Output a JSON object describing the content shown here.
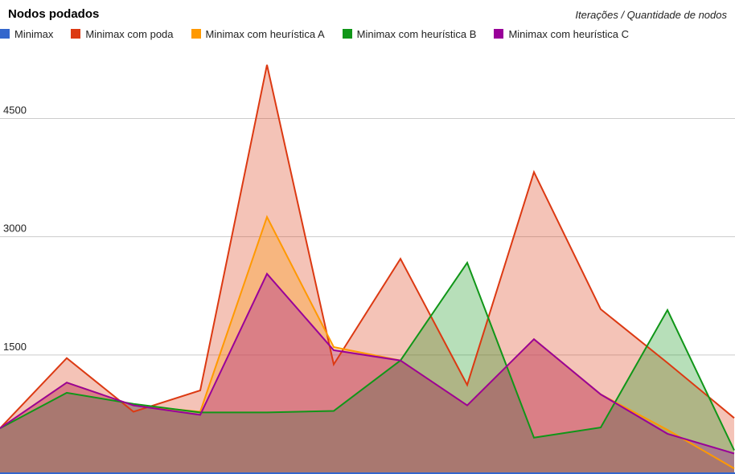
{
  "chart_data": {
    "type": "area",
    "title": "Nodos podados",
    "subtitle": "Iterações / Quantidade de nodos",
    "xlabel": "",
    "ylabel": "",
    "ylim": [
      0,
      5300
    ],
    "y_ticks": [
      1500,
      3000,
      4500
    ],
    "grid": true,
    "legend_position": "top",
    "x": [
      0,
      1,
      2,
      3,
      4,
      5,
      6,
      7,
      8,
      9,
      10,
      11
    ],
    "series": [
      {
        "name": "Minimax",
        "color": "#3366cc",
        "values": [
          0,
          0,
          0,
          0,
          0,
          0,
          0,
          0,
          0,
          0,
          0,
          0
        ]
      },
      {
        "name": "Minimax com poda",
        "color": "#dc3912",
        "values": [
          570,
          1460,
          780,
          1050,
          5180,
          1380,
          2720,
          1120,
          3820,
          2080,
          1400,
          700
        ]
      },
      {
        "name": "Minimax com heurística A",
        "color": "#ff9900",
        "values": [
          570,
          1150,
          860,
          780,
          3250,
          1600,
          1430,
          860,
          1700,
          1000,
          550,
          60
        ]
      },
      {
        "name": "Minimax com heurística B",
        "color": "#109618",
        "values": [
          570,
          1020,
          880,
          770,
          770,
          790,
          1430,
          2670,
          450,
          580,
          2070,
          290
        ]
      },
      {
        "name": "Minimax com heurística C",
        "color": "#990099",
        "values": [
          570,
          1150,
          860,
          740,
          2530,
          1560,
          1430,
          860,
          1700,
          1000,
          500,
          250
        ]
      }
    ]
  }
}
